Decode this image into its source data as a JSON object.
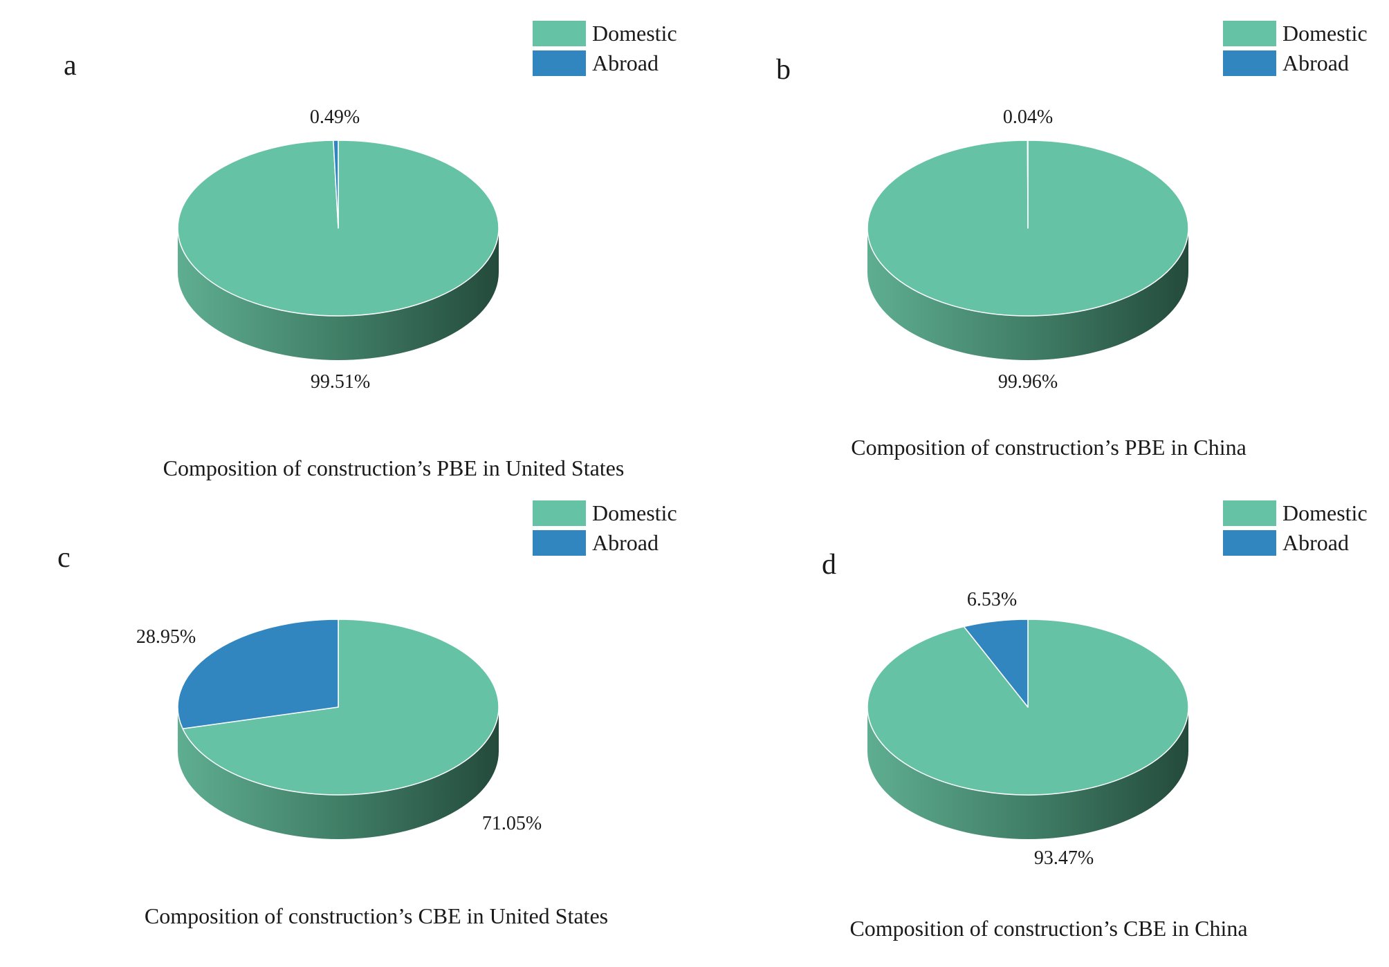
{
  "colors": {
    "domestic": "#66c2a5",
    "domestic_side_light": "#5fae91",
    "domestic_side_dark": "#244a3b",
    "abroad": "#3186c0",
    "abroad_side": "#1f5e8c",
    "edge": "#ffffff",
    "text": "#1a1a1a"
  },
  "chart_data": [
    {
      "type": "pie",
      "panel_label": "a",
      "title": "Composition of construction’s PBE in United States",
      "legend": [
        "Domestic",
        "Abroad"
      ],
      "slices": [
        {
          "name": "Domestic",
          "value": 99.51,
          "label": "99.51%"
        },
        {
          "name": "Abroad",
          "value": 0.49,
          "label": "0.49%"
        }
      ]
    },
    {
      "type": "pie",
      "panel_label": "b",
      "title": "Composition of construction’s PBE in China",
      "legend": [
        "Domestic",
        "Abroad"
      ],
      "slices": [
        {
          "name": "Domestic",
          "value": 99.96,
          "label": "99.96%"
        },
        {
          "name": "Abroad",
          "value": 0.04,
          "label": "0.04%"
        }
      ]
    },
    {
      "type": "pie",
      "panel_label": "c",
      "title": "Composition of construction’s CBE in United States",
      "legend": [
        "Domestic",
        "Abroad"
      ],
      "slices": [
        {
          "name": "Domestic",
          "value": 71.05,
          "label": "71.05%"
        },
        {
          "name": "Abroad",
          "value": 28.95,
          "label": "28.95%"
        }
      ]
    },
    {
      "type": "pie",
      "panel_label": "d",
      "title": "Composition of construction’s CBE in China",
      "legend": [
        "Domestic",
        "Abroad"
      ],
      "slices": [
        {
          "name": "Domestic",
          "value": 93.47,
          "label": "93.47%"
        },
        {
          "name": "Abroad",
          "value": 6.53,
          "label": "6.53%"
        }
      ]
    }
  ]
}
